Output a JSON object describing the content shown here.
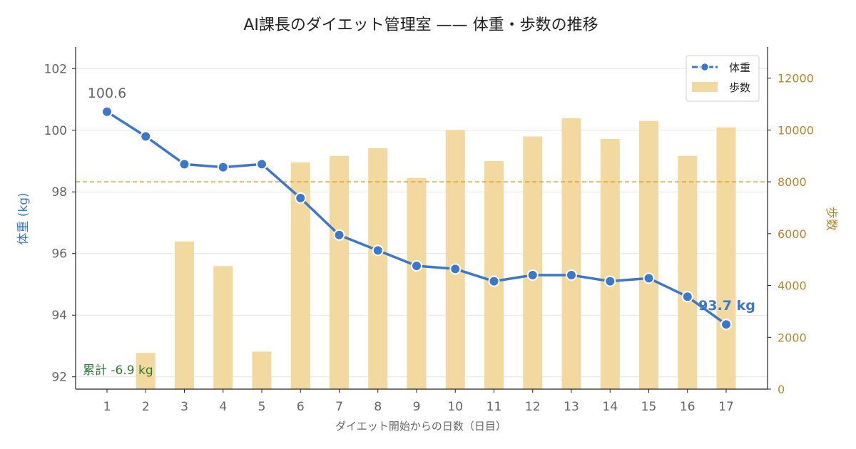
{
  "chart_data": {
    "type": "bar+line",
    "title": "AI課長のダイエット管理室 —— 体重・歩数の推移",
    "xlabel": "ダイエット開始からの日数（日目）",
    "ylabel_left": "体重 (kg)",
    "ylabel_right": "歩数",
    "x": [
      1,
      2,
      3,
      4,
      5,
      6,
      7,
      8,
      9,
      10,
      11,
      12,
      13,
      14,
      15,
      16,
      17
    ],
    "series": [
      {
        "name": "体重",
        "type": "line",
        "axis": "left",
        "color": "#3b78c9",
        "values": [
          100.6,
          99.8,
          98.9,
          98.8,
          98.9,
          97.8,
          96.6,
          96.1,
          95.6,
          95.5,
          95.1,
          95.3,
          95.3,
          95.1,
          95.2,
          94.6,
          93.7
        ]
      },
      {
        "name": "歩数",
        "type": "bar",
        "axis": "right",
        "color": "#f2d9a0",
        "values": [
          null,
          1400,
          5700,
          4750,
          1450,
          8750,
          9000,
          9300,
          8150,
          10000,
          8800,
          9750,
          10450,
          9650,
          10350,
          9000,
          10100
        ]
      }
    ],
    "ylim_left": [
      91.6,
      102.7
    ],
    "ylim_right": [
      0,
      13200
    ],
    "yticks_left": [
      92,
      94,
      96,
      98,
      100,
      102
    ],
    "yticks_right": [
      0,
      2000,
      4000,
      6000,
      8000,
      10000,
      12000
    ],
    "reference_line": {
      "axis": "right",
      "value": 8000,
      "color": "#e0a030"
    },
    "annotations": {
      "start_value": "100.6",
      "end_value": "93.7 kg",
      "cumulative": "累計 -6.9 kg"
    },
    "legend_position": "top-right",
    "grid": "horizontal",
    "colors": {
      "weight": "#3b78c9",
      "steps": "#f2d9a0",
      "steps_axis": "#b8862a",
      "cumulative": "#2e7d32",
      "start_label": "#666666"
    }
  }
}
